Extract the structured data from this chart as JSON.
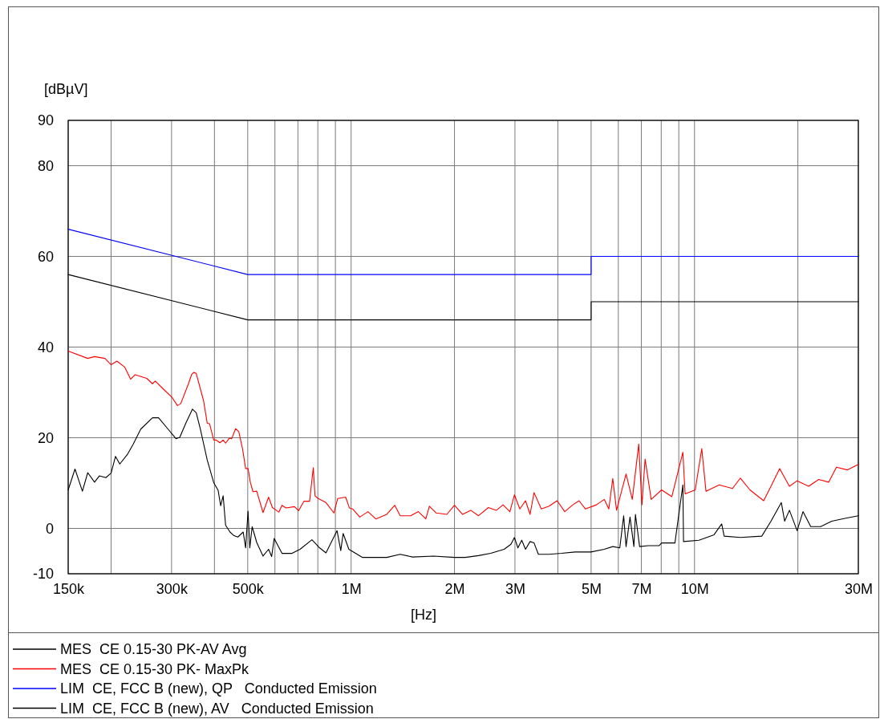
{
  "chart_data": {
    "type": "line",
    "xlabel": "[Hz]",
    "ylabel": "[dBµV]",
    "log": "x",
    "grid": true,
    "legend": "bottom",
    "line_style": "solid",
    "marker": "none",
    "xlim": [
      150000,
      30000000
    ],
    "ylim": [
      -10,
      90
    ],
    "xticks": [
      {
        "value": 150000,
        "label": "150k"
      },
      {
        "value": 200000,
        "label": null
      },
      {
        "value": 300000,
        "label": "300k"
      },
      {
        "value": 400000,
        "label": null
      },
      {
        "value": 500000,
        "label": "500k"
      },
      {
        "value": 600000,
        "label": null
      },
      {
        "value": 700000,
        "label": null
      },
      {
        "value": 800000,
        "label": null
      },
      {
        "value": 900000,
        "label": null
      },
      {
        "value": 1000000,
        "label": "1M"
      },
      {
        "value": 2000000,
        "label": "2M"
      },
      {
        "value": 3000000,
        "label": "3M"
      },
      {
        "value": 4000000,
        "label": null
      },
      {
        "value": 5000000,
        "label": "5M"
      },
      {
        "value": 6000000,
        "label": null
      },
      {
        "value": 7000000,
        "label": "7M"
      },
      {
        "value": 8000000,
        "label": null
      },
      {
        "value": 9000000,
        "label": null
      },
      {
        "value": 10000000,
        "label": "10M"
      },
      {
        "value": 20000000,
        "label": null
      },
      {
        "value": 30000000,
        "label": "30M"
      }
    ],
    "yticks": [
      -10,
      0,
      20,
      40,
      60,
      80,
      90
    ],
    "series": [
      {
        "name": "MES  CE 0.15-30 PK-AV Avg",
        "color": "#000000",
        "x": [
          150000,
          157000,
          165000,
          171000,
          179000,
          185000,
          193000,
          200000,
          206000,
          212000,
          223000,
          232000,
          244000,
          264000,
          275000,
          293000,
          309000,
          317000,
          331000,
          345000,
          354000,
          364000,
          381000,
          398000,
          410000,
          417000,
          424000,
          431000,
          444000,
          456000,
          468000,
          485000,
          493000,
          501000,
          507000,
          515000,
          531000,
          554000,
          575000,
          587000,
          597000,
          629000,
          673000,
          710000,
          769000,
          810000,
          845000,
          910000,
          933000,
          948000,
          985000,
          1080000,
          1270000,
          1390000,
          1510000,
          1740000,
          2000000,
          2150000,
          2350000,
          2550000,
          2790000,
          2920000,
          2990000,
          3060000,
          3140000,
          3220000,
          3320000,
          3410000,
          3510000,
          3770000,
          4100000,
          4490000,
          4990000,
          5460000,
          5780000,
          6060000,
          6220000,
          6320000,
          6490000,
          6660000,
          6730000,
          6920000,
          7330000,
          7890000,
          8020000,
          8770000,
          9250000,
          9290000,
          10300000,
          11400000,
          12000000,
          12200000,
          13600000,
          15700000,
          16700000,
          17900000,
          18300000,
          18900000,
          19900000,
          20700000,
          21800000,
          23300000,
          25100000,
          27400000,
          30000000
        ],
        "values": [
          8.5,
          13.1,
          8.2,
          12.3,
          10.2,
          11.6,
          11.2,
          12.2,
          15.9,
          14.2,
          16.3,
          18.6,
          21.9,
          24.4,
          24.4,
          21.9,
          19.8,
          20.1,
          23.4,
          26.3,
          25.5,
          21.9,
          15.1,
          10.1,
          8.4,
          5.0,
          7.2,
          0.7,
          -0.8,
          -1.6,
          -1.9,
          -0.8,
          -4.3,
          3.8,
          -4.3,
          0.4,
          -3.1,
          -6.1,
          -4.6,
          -6.2,
          -2.2,
          -5.5,
          -5.5,
          -4.6,
          -2.5,
          -4.3,
          -5.4,
          -0.5,
          -4.9,
          -1.1,
          -4.6,
          -6.4,
          -6.4,
          -5.7,
          -6.3,
          -6.1,
          -6.4,
          -6.4,
          -6.0,
          -5.5,
          -4.6,
          -3.5,
          -2.0,
          -4.3,
          -2.6,
          -4.6,
          -2.9,
          -3.2,
          -5.7,
          -5.7,
          -5.5,
          -5.2,
          -5.2,
          -4.6,
          -4.0,
          -4.3,
          2.8,
          -4.0,
          2.5,
          -4.0,
          3.1,
          -4.0,
          -3.8,
          -3.8,
          -3.2,
          -3.2,
          9.6,
          -2.9,
          -2.6,
          -1.4,
          1.0,
          -1.7,
          -2.0,
          -1.7,
          1.6,
          5.7,
          1.6,
          4.0,
          -0.5,
          3.7,
          0.4,
          0.4,
          1.6,
          2.2,
          2.8
        ]
      },
      {
        "name": "MES  CE 0.15-30 PK- MaxPk",
        "color": "#ff0000",
        "x": [
          150000,
          171000,
          179000,
          192000,
          200000,
          208000,
          219000,
          228000,
          235000,
          254000,
          264000,
          269000,
          287000,
          301000,
          312000,
          319000,
          336000,
          343000,
          348000,
          354000,
          372000,
          381000,
          387000,
          398000,
          404000,
          415000,
          424000,
          431000,
          442000,
          449000,
          461000,
          471000,
          483000,
          493000,
          501000,
          509000,
          518000,
          531000,
          554000,
          575000,
          590000,
          616000,
          629000,
          646000,
          684000,
          703000,
          729000,
          757000,
          776000,
          785000,
          802000,
          845000,
          891000,
          914000,
          964000,
          989000,
          1010000,
          1060000,
          1120000,
          1180000,
          1270000,
          1340000,
          1390000,
          1490000,
          1570000,
          1650000,
          1690000,
          1770000,
          1900000,
          2000000,
          2110000,
          2230000,
          2350000,
          2510000,
          2650000,
          2770000,
          2900000,
          2990000,
          3100000,
          3220000,
          3320000,
          3410000,
          3580000,
          3770000,
          3980000,
          4190000,
          4420000,
          4610000,
          4810000,
          5180000,
          5460000,
          5630000,
          5780000,
          5930000,
          6320000,
          6590000,
          6880000,
          7030000,
          7180000,
          7480000,
          8020000,
          8590000,
          9250000,
          9390000,
          10050000,
          10500000,
          10800000,
          11800000,
          12900000,
          13600000,
          14500000,
          15900000,
          16700000,
          17700000,
          18900000,
          19900000,
          21500000,
          23000000,
          24600000,
          25900000,
          27900000,
          30000000
        ],
        "values": [
          39.1,
          37.5,
          37.9,
          37.5,
          36.1,
          36.9,
          35.6,
          32.9,
          33.9,
          33.1,
          31.9,
          32.5,
          30.4,
          28.9,
          27.1,
          27.5,
          31.9,
          33.9,
          34.4,
          34.2,
          28.1,
          23.2,
          23.1,
          19.5,
          19.5,
          18.9,
          19.5,
          18.8,
          19.9,
          19.8,
          22.0,
          21.3,
          17.5,
          13.2,
          13.2,
          10.1,
          8.1,
          8.2,
          3.5,
          6.9,
          4.6,
          3.6,
          5.1,
          4.5,
          4.8,
          3.9,
          6.0,
          6.0,
          13.4,
          7.2,
          6.6,
          5.7,
          3.4,
          6.6,
          6.9,
          4.5,
          4.3,
          2.5,
          3.7,
          2.1,
          3.1,
          5.1,
          2.8,
          2.8,
          3.7,
          2.1,
          4.9,
          3.4,
          3.1,
          5.1,
          3.1,
          4.0,
          2.8,
          4.6,
          4.0,
          5.2,
          3.7,
          7.4,
          4.3,
          6.1,
          3.1,
          7.9,
          4.3,
          4.9,
          6.1,
          3.7,
          5.2,
          6.1,
          4.3,
          5.2,
          6.4,
          4.3,
          11.0,
          4.0,
          12.0,
          6.4,
          18.6,
          5.2,
          15.3,
          6.4,
          8.5,
          7.0,
          16.8,
          7.6,
          8.5,
          17.6,
          8.2,
          9.6,
          8.8,
          11.1,
          8.5,
          6.1,
          9.3,
          13.2,
          9.3,
          10.5,
          9.3,
          10.8,
          10.2,
          13.5,
          12.9,
          14.1
        ]
      },
      {
        "name": "LIM  CE, FCC B (new), QP   Conducted Emission",
        "color": "#0000ff",
        "x": [
          150000,
          500000,
          5000000,
          5000000,
          30000000
        ],
        "values": [
          66,
          56,
          56,
          60,
          60
        ]
      },
      {
        "name": "LIM  CE, FCC B (new), AV   Conducted Emission",
        "color": "#000000",
        "x": [
          150000,
          500000,
          5000000,
          5000000,
          30000000
        ],
        "values": [
          56,
          46,
          46,
          50,
          50
        ]
      }
    ]
  }
}
